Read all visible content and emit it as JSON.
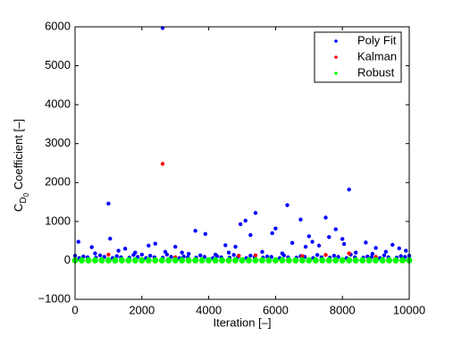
{
  "chart_data": {
    "type": "scatter",
    "xlabel": "Iteration [–]",
    "ylabel_parts": [
      "C",
      "D",
      "0",
      " Coefficient [–]"
    ],
    "xlim": [
      0,
      10000
    ],
    "xticks": [
      0,
      2000,
      4000,
      6000,
      8000,
      10000
    ],
    "ylim": [
      -1000,
      6000
    ],
    "yticks": [
      {
        "value": -1000,
        "label": "−1000"
      },
      0,
      1000,
      2000,
      3000,
      4000,
      5000,
      6000
    ],
    "legend": "upper right",
    "series": [
      {
        "name": "Poly Fit",
        "color": "#0000ff",
        "x": [
          2620,
          1000,
          8200,
          5400,
          6350,
          4950,
          5100,
          6750,
          7500,
          1050,
          3600,
          3900,
          5250,
          5900,
          6000,
          7000,
          7600,
          8000,
          7800,
          8050,
          8700,
          9500,
          9700,
          2400,
          2200,
          3000,
          1500,
          500,
          100,
          4500,
          4800,
          6500,
          7100,
          6900,
          7300,
          9000,
          600,
          1300,
          1800,
          2000,
          2700,
          3200,
          3400,
          4200,
          4600,
          5600,
          6200,
          8400,
          8900,
          9300,
          9900,
          0,
          250,
          750,
          1250,
          1750,
          2250,
          2750,
          3250,
          3750,
          4250,
          4750,
          5250,
          5750,
          6250,
          6750,
          7250,
          7750,
          8250,
          8750,
          9250,
          9750,
          10000,
          125,
          375,
          625,
          875,
          1125,
          1375,
          1625,
          1875,
          2125,
          2375,
          2625,
          2875,
          3125,
          3375,
          3625,
          3875,
          4125,
          4375,
          4625,
          4875,
          5125,
          5375,
          5625,
          5875,
          6125,
          6375,
          6625,
          6875,
          7125,
          7375,
          7625,
          7875,
          8125,
          8375,
          8625,
          8875,
          9125,
          9375,
          9625,
          9875
        ],
        "values": [
          5970,
          1460,
          1820,
          1220,
          1420,
          930,
          1020,
          1050,
          1100,
          560,
          760,
          680,
          650,
          700,
          820,
          620,
          600,
          550,
          800,
          420,
          460,
          400,
          310,
          430,
          380,
          350,
          300,
          340,
          480,
          390,
          350,
          450,
          480,
          350,
          380,
          320,
          180,
          250,
          200,
          150,
          220,
          200,
          170,
          150,
          200,
          220,
          180,
          200,
          170,
          220,
          250,
          120,
          100,
          130,
          110,
          140,
          120,
          150,
          100,
          130,
          110,
          140,
          120,
          100,
          130,
          110,
          140,
          120,
          150,
          100,
          130,
          110,
          120,
          60,
          80,
          70,
          90,
          60,
          80,
          70,
          90,
          60,
          80,
          70,
          90,
          60,
          80,
          70,
          90,
          60,
          80,
          70,
          90,
          60,
          80,
          70,
          90,
          60,
          80,
          70,
          90,
          60,
          80,
          70,
          90,
          60,
          80,
          70,
          90,
          60,
          80,
          70,
          90
        ]
      },
      {
        "name": "Kalman",
        "color": "#ff0000",
        "x": [
          2620,
          1000,
          4900,
          5400,
          6800,
          7500,
          8200,
          3000,
          9000
        ],
        "values": [
          2480,
          150,
          120,
          130,
          110,
          140,
          180,
          80,
          90
        ]
      },
      {
        "name": "Robust",
        "color": "#00ff00",
        "x": [
          0,
          200,
          400,
          600,
          800,
          1000,
          1200,
          1400,
          1600,
          1800,
          2000,
          2200,
          2400,
          2600,
          2800,
          3000,
          3200,
          3400,
          3600,
          3800,
          4000,
          4200,
          4400,
          4600,
          4800,
          5000,
          5200,
          5400,
          5600,
          5800,
          6000,
          6200,
          6400,
          6600,
          6800,
          7000,
          7200,
          7400,
          7600,
          7800,
          8000,
          8200,
          8400,
          8600,
          8800,
          9000,
          9200,
          9400,
          9600,
          9800,
          10000
        ],
        "values": [
          0,
          0,
          0,
          0,
          0,
          0,
          0,
          0,
          0,
          0,
          0,
          0,
          0,
          0,
          0,
          0,
          0,
          0,
          0,
          0,
          0,
          0,
          0,
          0,
          0,
          0,
          0,
          0,
          0,
          0,
          0,
          0,
          0,
          0,
          0,
          0,
          0,
          0,
          0,
          0,
          0,
          0,
          0,
          0,
          0,
          0,
          0,
          0,
          0,
          0,
          0
        ]
      }
    ]
  }
}
